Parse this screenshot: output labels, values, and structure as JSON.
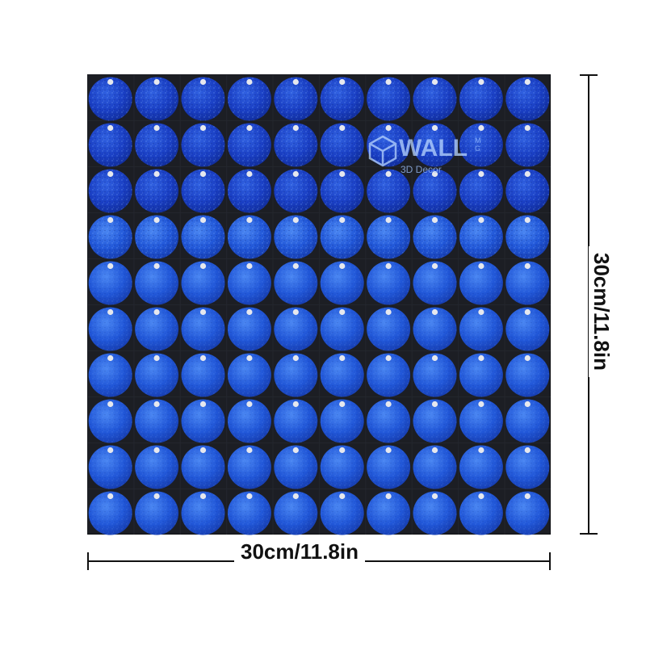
{
  "product": {
    "width_label": "30cm/11.8in",
    "height_label": "30cm/11.8in",
    "sequin_color": "#1c4fd6",
    "sequin_highlight": "#3d7cf0",
    "panel_color": "#1c1e24",
    "rows": 10,
    "cols": 10
  },
  "watermark": {
    "brand": "WALL",
    "mini": "MG",
    "sub": "3D Decor",
    "icon": "cube-logo-icon"
  }
}
